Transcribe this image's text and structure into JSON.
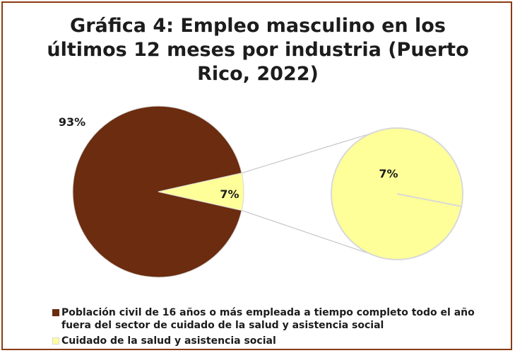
{
  "chart_data": {
    "type": "pie",
    "subtype": "pie-of-pie",
    "title": "Gráfica 4: Empleo masculino en los últimos 12 meses por industria (Puerto Rico, 2022)",
    "slices": [
      {
        "name": "Población civil de 16 años o más empleada a tiempo completo todo el año fuera del sector de cuidado de la salud y asistencia social",
        "value": 93,
        "label": "93%",
        "color": "#6b2c0f"
      },
      {
        "name": "Cuidado de la salud y asistencia social",
        "value": 7,
        "label": "7%",
        "color": "#ffff99"
      }
    ],
    "secondary_pie": {
      "slices": [
        {
          "value": 7,
          "label": "7%",
          "color": "#ffff99"
        }
      ]
    },
    "legend_position": "bottom-left"
  },
  "colors": {
    "frame": "#8a3b12",
    "slice_edge": "#d9d9d9",
    "connector": "#bfbfbf"
  }
}
